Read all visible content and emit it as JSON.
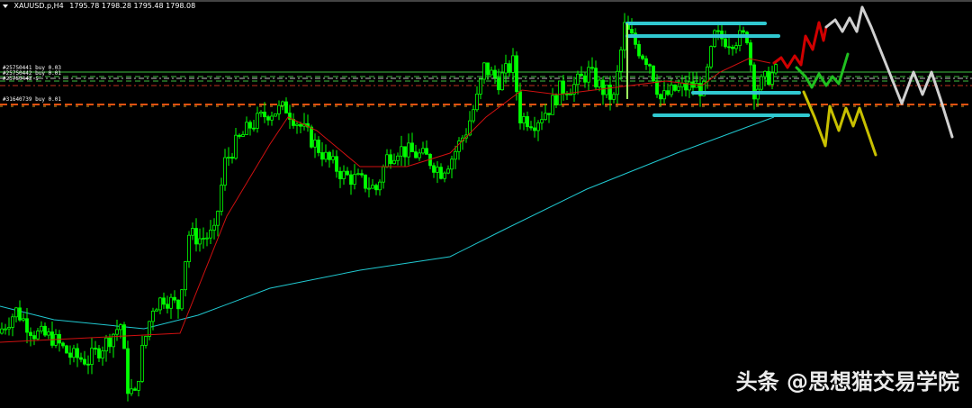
{
  "header": {
    "symbol": "XAUUSD.p,H4",
    "ohlc": "1795.78 1798.28 1795.48 1798.08"
  },
  "order_labels": [
    "#25750441 buy 0.03",
    "#25750442 buy 0.01",
    "#25750443 s",
    "#31640739 buy 0.01"
  ],
  "watermark": "头条 @思想猫交易学院",
  "colors": {
    "background": "#000000",
    "candles": "#00ff00",
    "ma_fast": "#d01010",
    "ma_slow": "#20c8d0",
    "drawn_levels": "#30c8d0",
    "scenario_red": "#d00000",
    "scenario_green": "#20c020",
    "scenario_yellow": "#c8c000",
    "scenario_white": "#d0d0d0"
  },
  "chart_data": {
    "type": "candlestick",
    "title": "",
    "xlabel": "",
    "ylabel": "",
    "grid": false,
    "close_path": {
      "bar": [
        0,
        5,
        10,
        15,
        20,
        25,
        30,
        34,
        36,
        38,
        40,
        43,
        46,
        50,
        53,
        56,
        60,
        63,
        66,
        70,
        75,
        80,
        84,
        88,
        91,
        96,
        100,
        105,
        108,
        111,
        115,
        119,
        123,
        126,
        130,
        133,
        135,
        139,
        143,
        145,
        149,
        153,
        156,
        160,
        164,
        168,
        171,
        174,
        178,
        181,
        184,
        188,
        193,
        196,
        199,
        203,
        208,
        210,
        214,
        216
      ],
      "price": [
        1741,
        1746,
        1741,
        1740,
        1736,
        1735,
        1739,
        1743,
        1729,
        1727,
        1737,
        1747,
        1749,
        1747,
        1763,
        1762,
        1763,
        1779,
        1783,
        1787,
        1790,
        1791,
        1787,
        1783,
        1780,
        1776,
        1775,
        1773,
        1780,
        1782,
        1781,
        1780,
        1777,
        1780,
        1786,
        1793,
        1800,
        1797,
        1801,
        1789,
        1788,
        1791,
        1795,
        1796,
        1799,
        1795,
        1793,
        1809,
        1804,
        1801,
        1793,
        1795,
        1796,
        1795,
        1807,
        1806,
        1807,
        1795,
        1798,
        1799
      ]
    },
    "ma_fast": {
      "bar": [
        0,
        50,
        63,
        75,
        80,
        88,
        100,
        113,
        125,
        135,
        145,
        155,
        165,
        175,
        185,
        195,
        200,
        208,
        214
      ],
      "price": [
        1739,
        1741,
        1767,
        1783,
        1789,
        1786,
        1778,
        1778,
        1781,
        1789,
        1795,
        1794,
        1795,
        1796,
        1797,
        1796,
        1799,
        1802,
        1801
      ]
    },
    "ma_slow": {
      "bar": [
        0,
        15,
        40,
        55,
        75,
        100,
        125,
        140,
        163,
        188,
        215
      ],
      "price": [
        1747,
        1744,
        1742,
        1745,
        1751,
        1755,
        1758,
        1764,
        1773,
        1781,
        1789
      ]
    },
    "horizontal_levels": [
      1799,
      1798,
      1797.6,
      1797,
      1796,
      1791.8,
      1791.4
    ],
    "drawn_levels": [
      1809.8,
      1807,
      1794.4,
      1789.4
    ]
  }
}
